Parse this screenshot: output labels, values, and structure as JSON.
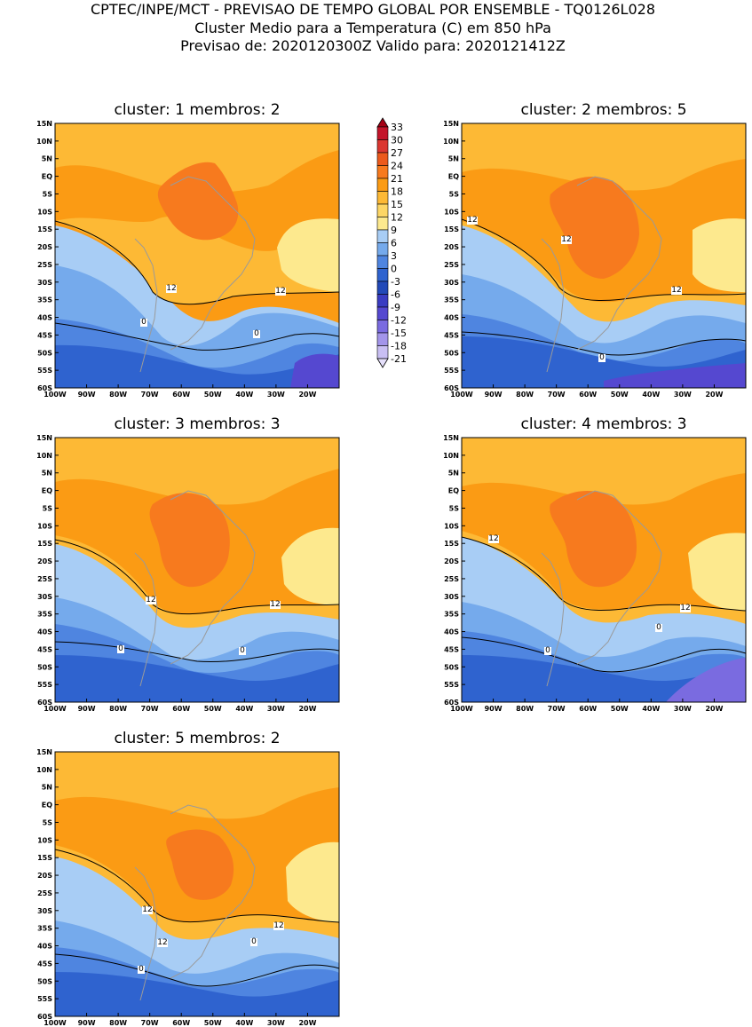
{
  "header": {
    "line1": "CPTEC/INPE/MCT - PREVISAO DE TEMPO GLOBAL POR ENSEMBLE - TQ0126L028",
    "line2": "Cluster Medio para a Temperatura (C) em 850 hPa",
    "line3": "Previsao de: 2020120300Z   Valido para: 2020121412Z"
  },
  "chart_data": {
    "type": "heatmap",
    "variable": "Temperature at 850 hPa (C)",
    "lat_ticks": [
      "15N",
      "10N",
      "5N",
      "EQ",
      "5S",
      "10S",
      "15S",
      "20S",
      "25S",
      "30S",
      "35S",
      "40S",
      "45S",
      "50S",
      "55S",
      "60S"
    ],
    "lon_ticks": [
      "100W",
      "90W",
      "80W",
      "70W",
      "60W",
      "50W",
      "40W",
      "30W",
      "20W"
    ],
    "lat_range": [
      15,
      -60
    ],
    "lon_range": [
      -100,
      -10
    ],
    "colorbar": {
      "labels": [
        "33",
        "30",
        "27",
        "24",
        "21",
        "18",
        "15",
        "12",
        "9",
        "6",
        "3",
        "0",
        "-3",
        "-6",
        "-9",
        "-12",
        "-15",
        "-18",
        "-21"
      ],
      "colors": [
        "#a50015",
        "#c4152a",
        "#db3730",
        "#ec5a1c",
        "#f77a1e",
        "#fb9b14",
        "#fdb935",
        "#fdd665",
        "#fde98e",
        "#a8cdf5",
        "#75aaec",
        "#4f85e0",
        "#2f63cf",
        "#2249b8",
        "#3a3cc2",
        "#5548d0",
        "#7a6be0",
        "#a395ea",
        "#c9bff3",
        "#e6e0fb"
      ]
    },
    "panels": [
      {
        "title": "cluster: 1   membros: 2",
        "cluster": 1,
        "members": 2,
        "contour_labels": [
          "12",
          "12",
          "0",
          "0"
        ]
      },
      {
        "title": "cluster: 2   membros: 5",
        "cluster": 2,
        "members": 5,
        "contour_labels": [
          "12",
          "12",
          "12",
          "0"
        ]
      },
      {
        "title": "cluster: 3   membros: 3",
        "cluster": 3,
        "members": 3,
        "contour_labels": [
          "12",
          "12",
          "0",
          "0"
        ]
      },
      {
        "title": "cluster: 4   membros: 3",
        "cluster": 4,
        "members": 3,
        "contour_labels": [
          "12",
          "12",
          "0",
          "0"
        ]
      },
      {
        "title": "cluster: 5   membros: 2",
        "cluster": 5,
        "members": 2,
        "contour_labels": [
          "12",
          "12",
          "12",
          "0",
          "0"
        ]
      }
    ]
  }
}
